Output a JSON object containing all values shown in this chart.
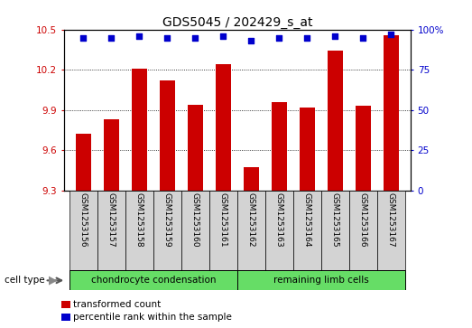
{
  "title": "GDS5045 / 202429_s_at",
  "samples": [
    "GSM1253156",
    "GSM1253157",
    "GSM1253158",
    "GSM1253159",
    "GSM1253160",
    "GSM1253161",
    "GSM1253162",
    "GSM1253163",
    "GSM1253164",
    "GSM1253165",
    "GSM1253166",
    "GSM1253167"
  ],
  "transformed_counts": [
    9.72,
    9.83,
    10.21,
    10.12,
    9.94,
    10.24,
    9.47,
    9.96,
    9.92,
    10.34,
    9.93,
    10.46
  ],
  "percentile_ranks": [
    95,
    95,
    96,
    95,
    95,
    96,
    93,
    95,
    95,
    96,
    95,
    97
  ],
  "ylim_left": [
    9.3,
    10.5
  ],
  "ylim_right": [
    0,
    100
  ],
  "yticks_left": [
    9.3,
    9.6,
    9.9,
    10.2,
    10.5
  ],
  "yticks_right": [
    0,
    25,
    50,
    75,
    100
  ],
  "bar_color": "#cc0000",
  "dot_color": "#0000cc",
  "bar_width": 0.55,
  "group1_label": "chondrocyte condensation",
  "group2_label": "remaining limb cells",
  "group1_indices": [
    0,
    1,
    2,
    3,
    4,
    5
  ],
  "group2_indices": [
    6,
    7,
    8,
    9,
    10,
    11
  ],
  "cell_type_label": "cell type",
  "legend_bar_label": "transformed count",
  "legend_dot_label": "percentile rank within the sample",
  "group1_color": "#66dd66",
  "group2_color": "#66dd66",
  "sample_bg": "#d3d3d3",
  "background_color": "#ffffff",
  "title_fontsize": 10,
  "tick_fontsize": 7.5,
  "label_fontsize": 6.5,
  "cell_type_fontsize": 7.5,
  "legend_fontsize": 7.5
}
